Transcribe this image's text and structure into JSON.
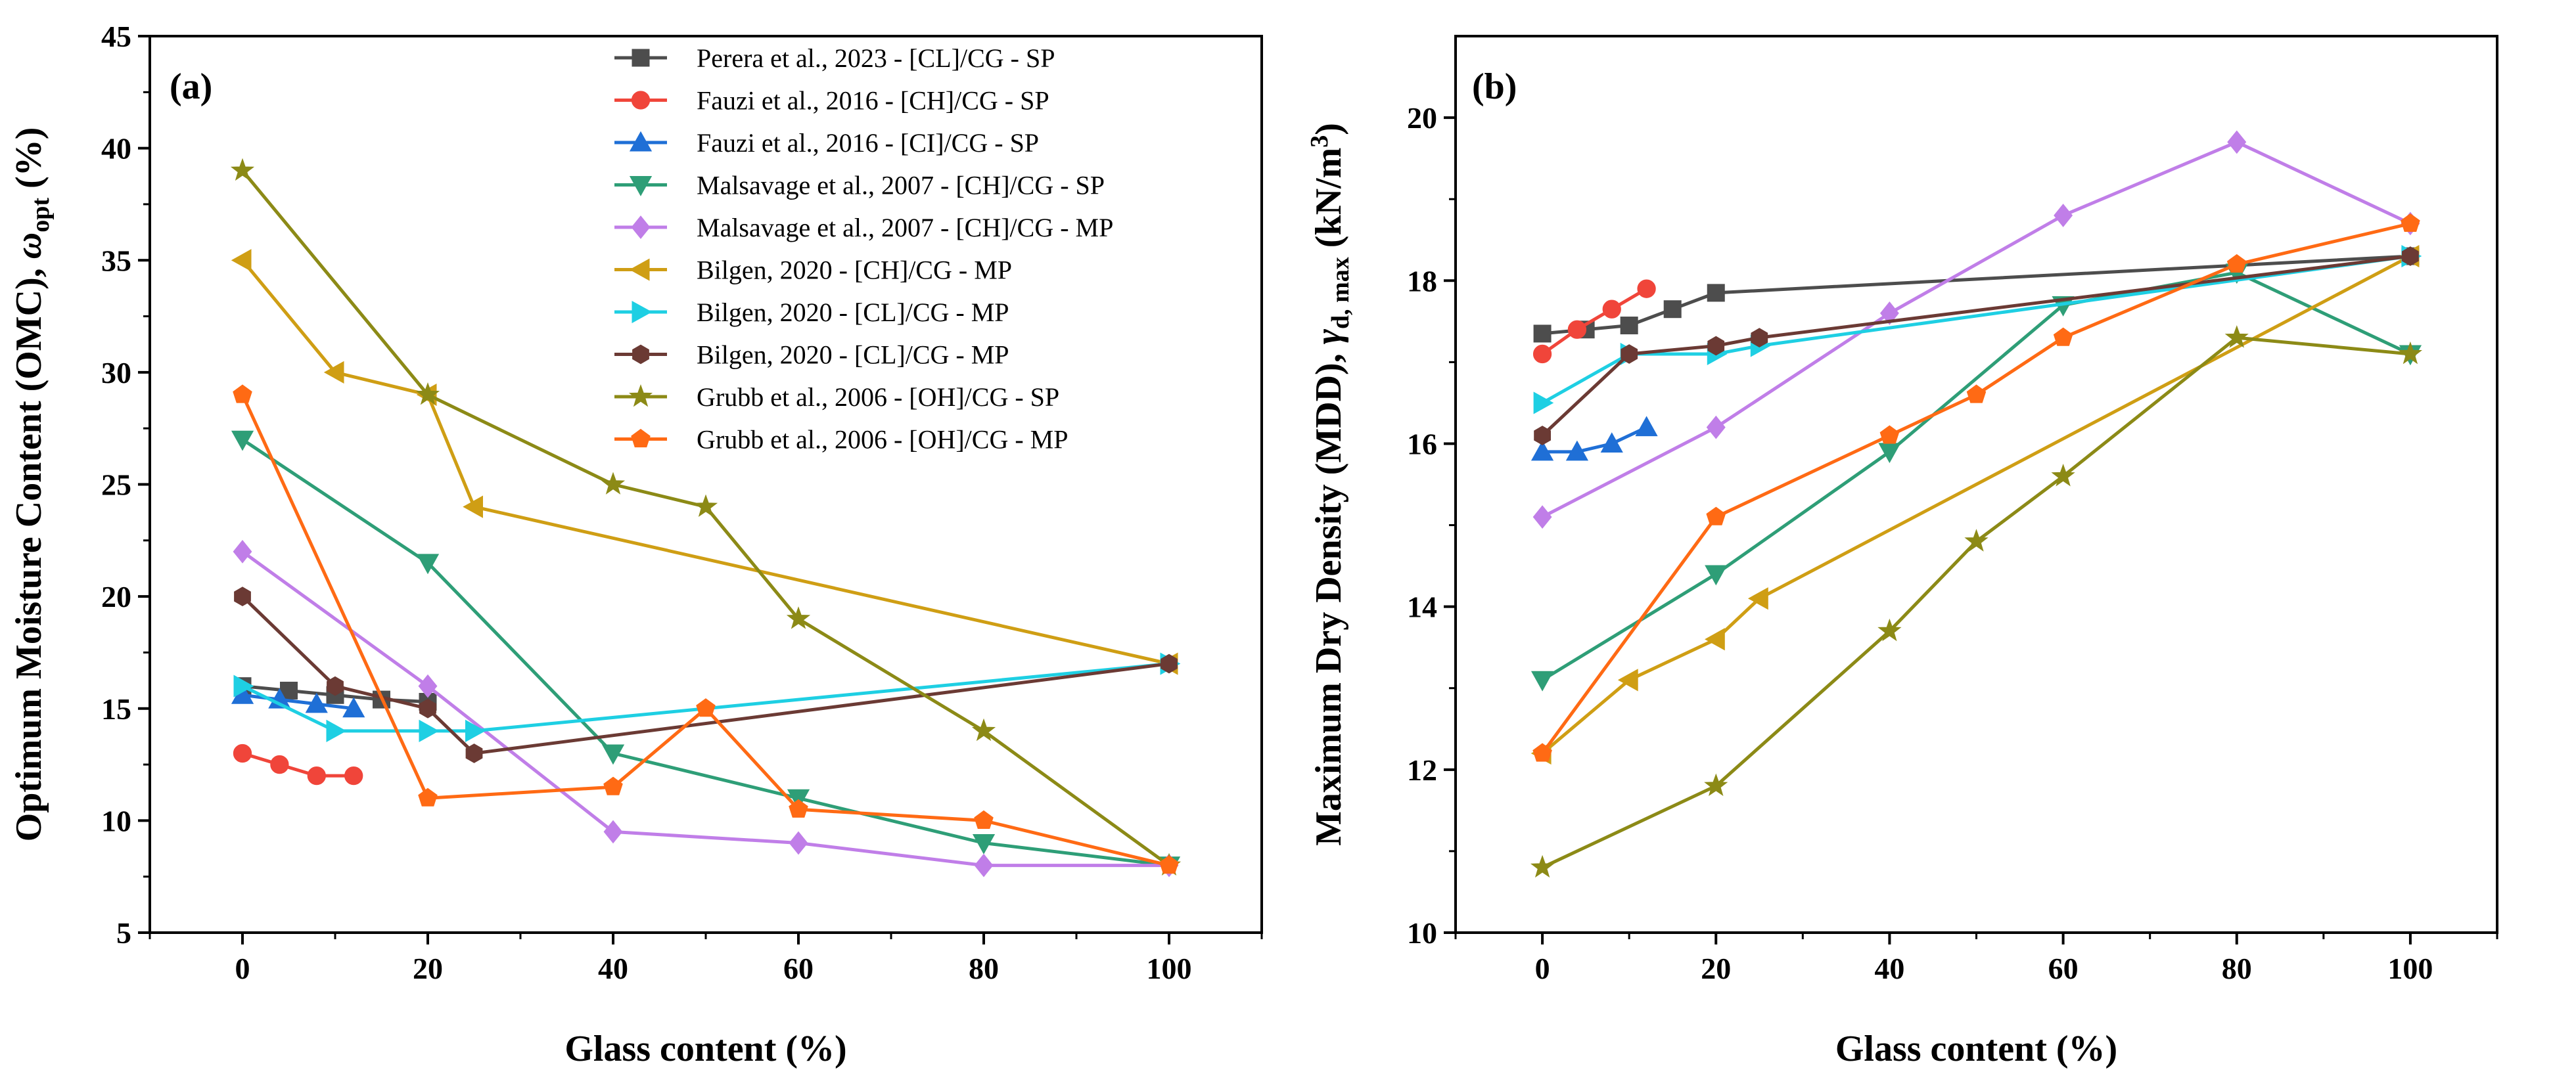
{
  "chart_data": [
    {
      "panel_label": "(a)",
      "type": "line",
      "xlabel": "Glass content (%)",
      "ylabel_main": "Optimum Moisture Content (OMC), ",
      "ylabel_symbol": "ω",
      "ylabel_sub": "opt",
      "ylabel_unit": " (%)",
      "xlim": [
        -10,
        110
      ],
      "ylim": [
        5,
        45
      ],
      "xticks": [
        0,
        20,
        40,
        60,
        80,
        100
      ],
      "yticks": [
        5,
        10,
        15,
        20,
        25,
        30,
        35,
        40,
        45
      ],
      "grid": false,
      "legend_position": "top-right",
      "series": [
        {
          "name": "Perera et al., 2023 - [CL]/CG - SP",
          "color": "#4d4d4d",
          "marker": "square",
          "x": [
            0,
            5,
            10,
            15,
            20
          ],
          "y": [
            16.0,
            15.8,
            15.6,
            15.4,
            15.3
          ]
        },
        {
          "name": "Fauzi et al., 2016 - [CH]/CG - SP",
          "color": "#f0453a",
          "marker": "circle",
          "x": [
            0,
            4,
            8,
            12
          ],
          "y": [
            13.0,
            12.5,
            12.0,
            12.0
          ]
        },
        {
          "name": "Fauzi et al., 2016 - [CI]/CG - SP",
          "color": "#1f6fd6",
          "marker": "triangle-up",
          "x": [
            0,
            4,
            8,
            12
          ],
          "y": [
            15.6,
            15.4,
            15.2,
            15.0
          ]
        },
        {
          "name": "Malsavage et al., 2007 - [CH]/CG - SP",
          "color": "#2e9e77",
          "marker": "triangle-down",
          "x": [
            0,
            20,
            40,
            60,
            80,
            100
          ],
          "y": [
            27.0,
            21.5,
            13.0,
            11.0,
            9.0,
            8.0
          ]
        },
        {
          "name": "Malsavage et al., 2007 - [CH]/CG - MP",
          "color": "#c07ee8",
          "marker": "diamond",
          "x": [
            0,
            20,
            40,
            60,
            80,
            100
          ],
          "y": [
            22.0,
            16.0,
            9.5,
            9.0,
            8.0,
            8.0
          ]
        },
        {
          "name": "Bilgen, 2020 - [CH]/CG - MP",
          "color": "#cf9e14",
          "marker": "triangle-left",
          "x": [
            0,
            10,
            20,
            25,
            100
          ],
          "y": [
            35.0,
            30.0,
            29.0,
            24.0,
            17.0
          ]
        },
        {
          "name": "Bilgen, 2020 - [CL]/CG - MP",
          "color": "#1ecfe3",
          "marker": "triangle-right",
          "x": [
            0,
            10,
            20,
            25,
            100
          ],
          "y": [
            16.0,
            14.0,
            14.0,
            14.0,
            17.0
          ]
        },
        {
          "name": "Bilgen, 2020 - [CL]/CG - MP",
          "color": "#6b3a34",
          "marker": "hexagon",
          "x": [
            0,
            10,
            20,
            25,
            100
          ],
          "y": [
            20.0,
            16.0,
            15.0,
            13.0,
            17.0
          ]
        },
        {
          "name": "Grubb et al., 2006 - [OH]/CG - SP",
          "color": "#8c8a16",
          "marker": "star",
          "x": [
            0,
            20,
            40,
            50,
            60,
            80,
            100
          ],
          "y": [
            39.0,
            29.0,
            25.0,
            24.0,
            19.0,
            14.0,
            8.0
          ]
        },
        {
          "name": "Grubb et al., 2006 - [OH]/CG - MP",
          "color": "#ff6a14",
          "marker": "pentagon",
          "x": [
            0,
            20,
            40,
            50,
            60,
            80,
            100
          ],
          "y": [
            29.0,
            11.0,
            11.5,
            15.0,
            10.5,
            10.0,
            8.0
          ]
        }
      ]
    },
    {
      "panel_label": "(b)",
      "type": "line",
      "xlabel": "Glass content (%)",
      "ylabel_main": "Maximum Dry Density (MDD), ",
      "ylabel_symbol": "γ",
      "ylabel_sub": "d, max",
      "ylabel_unit_pre": " (kN/m",
      "ylabel_sup": "3",
      "ylabel_unit_post": ")",
      "xlim": [
        -10,
        110
      ],
      "ylim": [
        10,
        21
      ],
      "xticks": [
        0,
        20,
        40,
        60,
        80,
        100
      ],
      "yticks": [
        10,
        12,
        14,
        16,
        18,
        20
      ],
      "grid": false,
      "series": [
        {
          "name": "Perera et al., 2023 - [CL]/CG - SP",
          "color": "#4d4d4d",
          "marker": "square",
          "x": [
            0,
            5,
            10,
            15,
            20,
            100
          ],
          "y": [
            17.35,
            17.4,
            17.45,
            17.65,
            17.85,
            18.3
          ]
        },
        {
          "name": "Fauzi et al., 2016 - [CH]/CG - SP",
          "color": "#f0453a",
          "marker": "circle",
          "x": [
            0,
            4,
            8,
            12
          ],
          "y": [
            17.1,
            17.4,
            17.65,
            17.9
          ]
        },
        {
          "name": "Fauzi et al., 2016 - [CI]/CG - SP",
          "color": "#1f6fd6",
          "marker": "triangle-up",
          "x": [
            0,
            4,
            8,
            12
          ],
          "y": [
            15.9,
            15.9,
            16.0,
            16.2
          ]
        },
        {
          "name": "Malsavage et al., 2007 - [CH]/CG - SP",
          "color": "#2e9e77",
          "marker": "triangle-down",
          "x": [
            0,
            20,
            40,
            60,
            80,
            100
          ],
          "y": [
            13.1,
            14.4,
            15.9,
            17.7,
            18.1,
            17.1
          ]
        },
        {
          "name": "Malsavage et al., 2007 - [CH]/CG - MP",
          "color": "#c07ee8",
          "marker": "diamond",
          "x": [
            0,
            20,
            40,
            60,
            80,
            100
          ],
          "y": [
            15.1,
            16.2,
            17.6,
            18.8,
            19.7,
            18.7
          ]
        },
        {
          "name": "Bilgen, 2020 - [CH]/CG - MP",
          "color": "#cf9e14",
          "marker": "triangle-left",
          "x": [
            0,
            10,
            20,
            25,
            100
          ],
          "y": [
            12.2,
            13.1,
            13.6,
            14.1,
            18.3
          ]
        },
        {
          "name": "Bilgen, 2020 - [CL]/CG - MP",
          "color": "#1ecfe3",
          "marker": "triangle-right",
          "x": [
            0,
            10,
            20,
            25,
            100
          ],
          "y": [
            16.5,
            17.1,
            17.1,
            17.2,
            18.3
          ]
        },
        {
          "name": "Bilgen, 2020 - [CL]/CG - MP",
          "color": "#6b3a34",
          "marker": "hexagon",
          "x": [
            0,
            10,
            20,
            25,
            100
          ],
          "y": [
            16.1,
            17.1,
            17.2,
            17.3,
            18.3
          ]
        },
        {
          "name": "Grubb et al., 2006 - [OH]/CG - SP",
          "color": "#8c8a16",
          "marker": "star",
          "x": [
            0,
            20,
            40,
            50,
            60,
            80,
            100
          ],
          "y": [
            10.8,
            11.8,
            13.7,
            14.8,
            15.6,
            17.3,
            17.1
          ]
        },
        {
          "name": "Grubb et al., 2006 - [OH]/CG - MP",
          "color": "#ff6a14",
          "marker": "pentagon",
          "x": [
            0,
            20,
            40,
            50,
            60,
            80,
            100
          ],
          "y": [
            12.2,
            15.1,
            16.1,
            16.6,
            17.3,
            18.2,
            18.7
          ]
        }
      ]
    }
  ]
}
